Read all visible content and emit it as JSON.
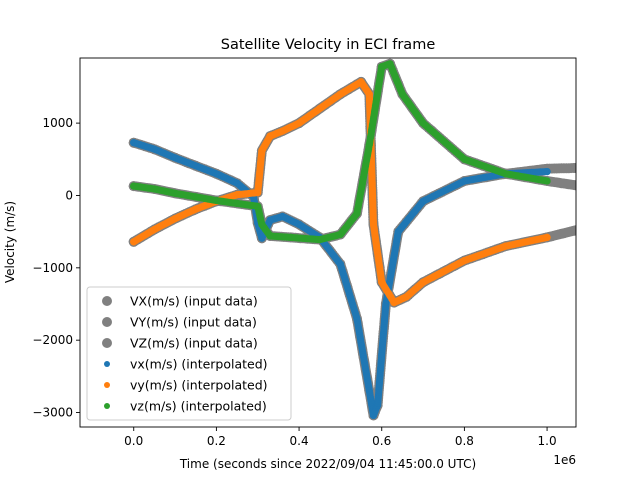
{
  "chart_data": {
    "type": "scatter",
    "title": "Satellite Velocity in ECI frame",
    "xlabel": "Time (seconds since 2022/09/04 11:45:00.0 UTC)",
    "ylabel": "Velocity (m/s)",
    "x_offset_label": "1e6",
    "xlim": [
      -0.13,
      1.07
    ],
    "ylim": [
      -3200,
      1900
    ],
    "x_ticks": [
      0.0,
      0.2,
      0.4,
      0.6,
      0.8,
      1.0
    ],
    "x_tick_labels": [
      "0.0",
      "0.2",
      "0.4",
      "0.6",
      "0.8",
      "1.0"
    ],
    "y_ticks": [
      -3000,
      -2000,
      -1000,
      0,
      1000
    ],
    "y_tick_labels": [
      "−3000",
      "−2000",
      "−1000",
      "0",
      "1000"
    ],
    "grid": false,
    "legend_position": "lower-left",
    "colors": {
      "input": "#808080",
      "vx": "#1f77b4",
      "vy": "#ff7f0e",
      "vz": "#2ca02c"
    },
    "series": [
      {
        "name": "VX(m/s) (input data)",
        "kind": "input",
        "points": [
          [
            0.0,
            730
          ],
          [
            0.05,
            640
          ],
          [
            0.1,
            520
          ],
          [
            0.15,
            410
          ],
          [
            0.2,
            300
          ],
          [
            0.25,
            170
          ],
          [
            0.29,
            -20
          ],
          [
            0.3,
            -380
          ],
          [
            0.31,
            -590
          ],
          [
            0.33,
            -340
          ],
          [
            0.36,
            -290
          ],
          [
            0.4,
            -400
          ],
          [
            0.45,
            -580
          ],
          [
            0.5,
            -950
          ],
          [
            0.54,
            -1700
          ],
          [
            0.57,
            -2700
          ],
          [
            0.58,
            -3040
          ],
          [
            0.59,
            -2900
          ],
          [
            0.61,
            -1500
          ],
          [
            0.64,
            -500
          ],
          [
            0.7,
            -80
          ],
          [
            0.8,
            200
          ],
          [
            0.9,
            300
          ],
          [
            1.0,
            370
          ],
          [
            1.07,
            380
          ]
        ]
      },
      {
        "name": "VY(m/s) (input data)",
        "kind": "input",
        "points": [
          [
            0.0,
            -640
          ],
          [
            0.05,
            -470
          ],
          [
            0.1,
            -320
          ],
          [
            0.15,
            -190
          ],
          [
            0.2,
            -80
          ],
          [
            0.25,
            10
          ],
          [
            0.3,
            40
          ],
          [
            0.31,
            620
          ],
          [
            0.33,
            820
          ],
          [
            0.36,
            890
          ],
          [
            0.4,
            1000
          ],
          [
            0.45,
            1200
          ],
          [
            0.5,
            1400
          ],
          [
            0.55,
            1570
          ],
          [
            0.57,
            1400
          ],
          [
            0.58,
            -400
          ],
          [
            0.6,
            -1200
          ],
          [
            0.63,
            -1480
          ],
          [
            0.66,
            -1400
          ],
          [
            0.7,
            -1200
          ],
          [
            0.8,
            -900
          ],
          [
            0.9,
            -700
          ],
          [
            1.0,
            -580
          ],
          [
            1.07,
            -480
          ]
        ]
      },
      {
        "name": "VZ(m/s) (input data)",
        "kind": "input",
        "points": [
          [
            0.0,
            130
          ],
          [
            0.05,
            90
          ],
          [
            0.1,
            30
          ],
          [
            0.15,
            -20
          ],
          [
            0.2,
            -70
          ],
          [
            0.25,
            -110
          ],
          [
            0.3,
            -150
          ],
          [
            0.31,
            -400
          ],
          [
            0.33,
            -560
          ],
          [
            0.38,
            -580
          ],
          [
            0.45,
            -610
          ],
          [
            0.5,
            -540
          ],
          [
            0.54,
            -250
          ],
          [
            0.57,
            700
          ],
          [
            0.6,
            1780
          ],
          [
            0.62,
            1820
          ],
          [
            0.65,
            1400
          ],
          [
            0.7,
            1000
          ],
          [
            0.8,
            500
          ],
          [
            0.9,
            300
          ],
          [
            1.0,
            200
          ],
          [
            1.07,
            140
          ]
        ]
      },
      {
        "name": "vx(m/s) (interpolated)",
        "kind": "interp",
        "points": [
          [
            0.0,
            730
          ],
          [
            0.05,
            640
          ],
          [
            0.1,
            520
          ],
          [
            0.15,
            410
          ],
          [
            0.2,
            300
          ],
          [
            0.25,
            170
          ],
          [
            0.29,
            -20
          ],
          [
            0.3,
            -380
          ],
          [
            0.31,
            -590
          ],
          [
            0.33,
            -340
          ],
          [
            0.36,
            -290
          ],
          [
            0.4,
            -400
          ],
          [
            0.45,
            -580
          ],
          [
            0.5,
            -950
          ],
          [
            0.54,
            -1700
          ],
          [
            0.57,
            -2700
          ],
          [
            0.58,
            -3040
          ],
          [
            0.59,
            -2900
          ],
          [
            0.61,
            -1500
          ],
          [
            0.64,
            -500
          ],
          [
            0.7,
            -80
          ],
          [
            0.8,
            200
          ],
          [
            0.9,
            300
          ],
          [
            1.0,
            330
          ]
        ]
      },
      {
        "name": "vy(m/s) (interpolated)",
        "kind": "interp",
        "points": [
          [
            0.0,
            -640
          ],
          [
            0.05,
            -470
          ],
          [
            0.1,
            -320
          ],
          [
            0.15,
            -190
          ],
          [
            0.2,
            -80
          ],
          [
            0.25,
            10
          ],
          [
            0.3,
            40
          ],
          [
            0.31,
            620
          ],
          [
            0.33,
            820
          ],
          [
            0.36,
            890
          ],
          [
            0.4,
            1000
          ],
          [
            0.45,
            1200
          ],
          [
            0.5,
            1400
          ],
          [
            0.55,
            1570
          ],
          [
            0.57,
            1400
          ],
          [
            0.58,
            -400
          ],
          [
            0.6,
            -1200
          ],
          [
            0.63,
            -1480
          ],
          [
            0.66,
            -1400
          ],
          [
            0.7,
            -1200
          ],
          [
            0.8,
            -900
          ],
          [
            0.9,
            -700
          ],
          [
            1.0,
            -580
          ]
        ]
      },
      {
        "name": "vz(m/s) (interpolated)",
        "kind": "interp",
        "points": [
          [
            0.0,
            130
          ],
          [
            0.05,
            90
          ],
          [
            0.1,
            30
          ],
          [
            0.15,
            -20
          ],
          [
            0.2,
            -70
          ],
          [
            0.25,
            -110
          ],
          [
            0.3,
            -150
          ],
          [
            0.31,
            -400
          ],
          [
            0.33,
            -560
          ],
          [
            0.38,
            -580
          ],
          [
            0.45,
            -610
          ],
          [
            0.5,
            -540
          ],
          [
            0.54,
            -250
          ],
          [
            0.57,
            700
          ],
          [
            0.6,
            1780
          ],
          [
            0.62,
            1820
          ],
          [
            0.65,
            1400
          ],
          [
            0.7,
            1000
          ],
          [
            0.8,
            500
          ],
          [
            0.9,
            300
          ],
          [
            1.0,
            200
          ]
        ]
      }
    ]
  }
}
